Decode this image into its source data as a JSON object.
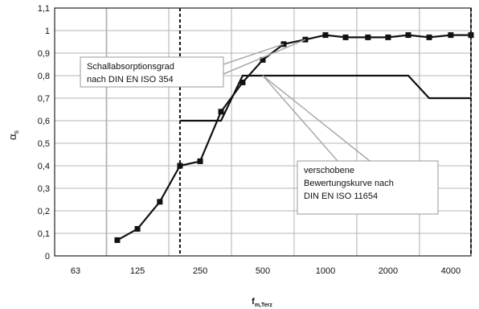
{
  "chart_data": {
    "type": "line",
    "title": "",
    "xlabel": "f",
    "xlabel_sub": "m,Terz",
    "ylabel": "α",
    "ylabel_sub": "s",
    "x_scale": "log (third-octave bands)",
    "xlim_hz": [
      50,
      5000
    ],
    "x_tick_labels": [
      "63",
      "125",
      "250",
      "500",
      "1000",
      "2000",
      "4000"
    ],
    "ylim": [
      0,
      1.1
    ],
    "y_tick_labels": [
      "0",
      "0,1",
      "0,2",
      "0,3",
      "0,4",
      "0,5",
      "0,6",
      "0,7",
      "0,8",
      "0,9",
      "1",
      "1,1"
    ],
    "grid": true,
    "vertical_markers_hz": [
      200,
      5000
    ],
    "series": [
      {
        "x": [
          100,
          125,
          160,
          200,
          250,
          315,
          400,
          500,
          630,
          800,
          1000,
          1250,
          1600,
          2000,
          2500,
          3150,
          4000,
          5000
        ],
        "y": [
          0.07,
          0.12,
          0.24,
          0.4,
          0.42,
          0.64,
          0.77,
          0.87,
          0.94,
          0.96,
          0.98,
          0.97,
          0.97,
          0.97,
          0.98,
          0.97,
          0.98,
          0.98
        ],
        "marker": "square"
      },
      {
        "x": [
          200,
          315,
          400,
          2500,
          3150,
          5000
        ],
        "y": [
          0.6,
          0.6,
          0.8,
          0.8,
          0.7,
          0.7
        ],
        "marker": "none"
      }
    ],
    "annotations": [
      {
        "lines": [
          "Schallabsorptionsgrad",
          "nach DIN EN ISO 354"
        ]
      },
      {
        "lines": [
          "verschobene",
          "Bewertungskurve nach",
          "DIN EN ISO 11654"
        ]
      }
    ]
  }
}
